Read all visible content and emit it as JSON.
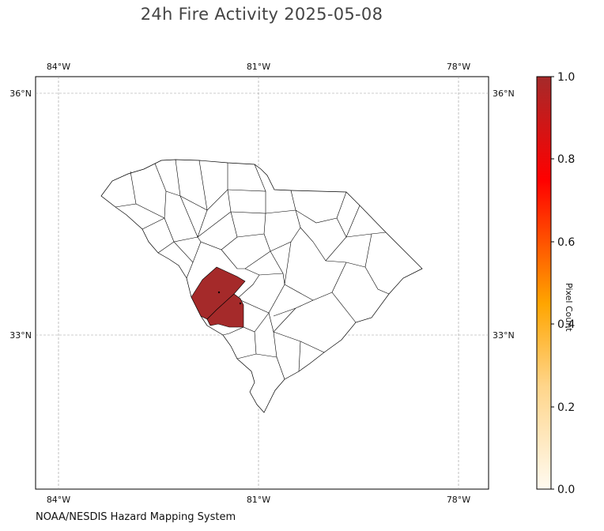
{
  "title": "24h Fire Activity 2025-05-08",
  "credit": "NOAA/NESDIS Hazard Mapping System",
  "map": {
    "lon_labels": [
      "84°W",
      "81°W",
      "78°W"
    ],
    "lat_labels": [
      "36°N",
      "33°N"
    ],
    "gridlines": true
  },
  "colorbar": {
    "title": "Pixel Count",
    "range": [
      0.0,
      1.0
    ],
    "ticks": [
      "0.0",
      "0.2",
      "0.4",
      "0.6",
      "0.8",
      "1.0"
    ],
    "colors": {
      "low": "#fffaf0",
      "mid": "#ffa500",
      "high_mid": "#ff0000",
      "high": "#a52a2a"
    }
  },
  "highlight_color": "#a52a2a"
}
